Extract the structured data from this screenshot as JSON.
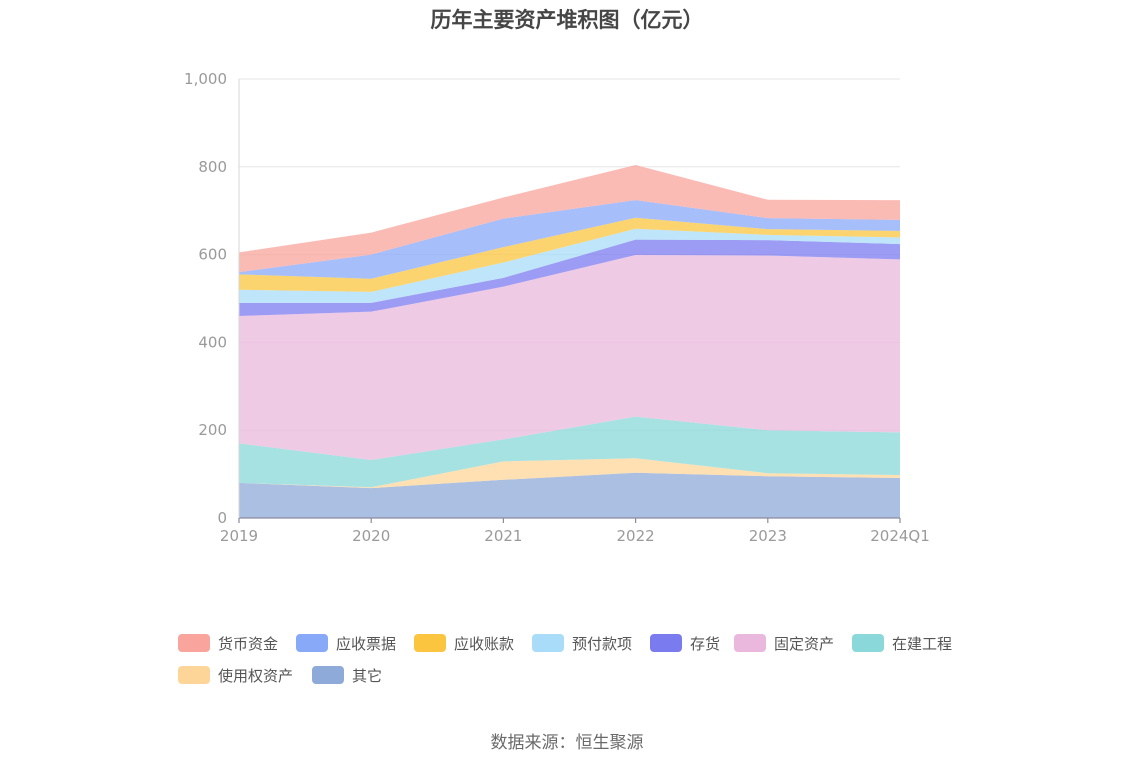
{
  "chart_data": {
    "type": "area",
    "stacked": true,
    "title": "历年主要资产堆积图（亿元）",
    "categories": [
      "2019",
      "2020",
      "2021",
      "2022",
      "2023",
      "2024Q1"
    ],
    "ylim": [
      0,
      1000
    ],
    "yticks": [
      "0",
      "200",
      "400",
      "600",
      "800",
      "1,000"
    ],
    "grid": true,
    "legend_position": "bottom",
    "series": [
      {
        "name": "其它",
        "color": "#8eaad8",
        "values": [
          80,
          68,
          87,
          103,
          95,
          91
        ]
      },
      {
        "name": "使用权资产",
        "color": "#fdd598",
        "values": [
          0,
          2,
          42,
          33,
          7,
          7
        ]
      },
      {
        "name": "在建工程",
        "color": "#8ad8d9",
        "values": [
          90,
          62,
          50,
          95,
          98,
          97
        ]
      },
      {
        "name": "固定资产",
        "color": "#e9b8dc",
        "values": [
          290,
          338,
          348,
          368,
          398,
          394
        ]
      },
      {
        "name": "存货",
        "color": "#7b7bf0",
        "values": [
          30,
          20,
          20,
          35,
          35,
          35
        ]
      },
      {
        "name": "预付款项",
        "color": "#a8dcf8",
        "values": [
          30,
          25,
          35,
          25,
          12,
          15
        ]
      },
      {
        "name": "应收账款",
        "color": "#fbc53f",
        "values": [
          35,
          30,
          35,
          25,
          13,
          15
        ]
      },
      {
        "name": "应收票据",
        "color": "#88a8f8",
        "values": [
          5,
          55,
          65,
          40,
          25,
          25
        ]
      },
      {
        "name": "货币资金",
        "color": "#f9a49c",
        "values": [
          45,
          50,
          48,
          80,
          42,
          45
        ]
      }
    ],
    "legend_order": [
      "货币资金",
      "应收票据",
      "应收账款",
      "预付款项",
      "存货",
      "固定资产",
      "在建工程",
      "使用权资产",
      "其它"
    ]
  },
  "source_text": "数据来源：恒生聚源"
}
